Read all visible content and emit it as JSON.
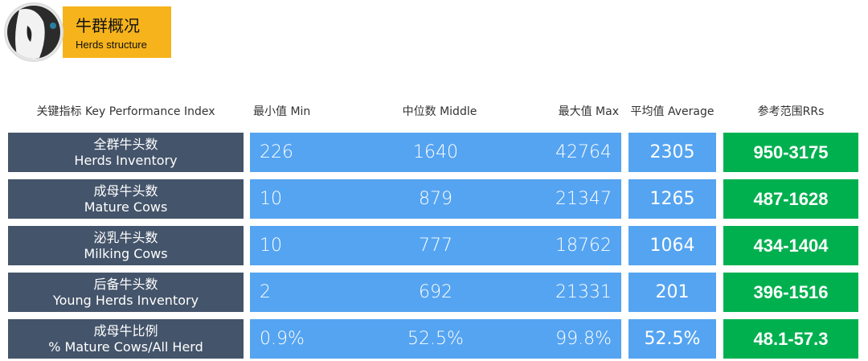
{
  "header": {
    "title": "牛群概况",
    "subtitle": "Herds structure"
  },
  "table": {
    "columns": [
      "关键指标 Key Performance Index",
      "最小值 Min",
      "中位数 Middle",
      "最大值 Max",
      "平均值 Average",
      "参考范围RRs"
    ],
    "rows": [
      {
        "label_cn": "全群牛头数",
        "label_en": "Herds Inventory",
        "min": "226",
        "middle": "1640",
        "max": "42764",
        "average": "2305",
        "rrs": "950-3175"
      },
      {
        "label_cn": "成母牛头数",
        "label_en": "Mature Cows",
        "min": "10",
        "middle": "879",
        "max": "21347",
        "average": "1265",
        "rrs": "487-1628"
      },
      {
        "label_cn": "泌乳牛头数",
        "label_en": "Milking Cows",
        "min": "10",
        "middle": "777",
        "max": "18762",
        "average": "1064",
        "rrs": "434-1404"
      },
      {
        "label_cn": "后备牛头数",
        "label_en": "Young Herds Inventory",
        "min": "2",
        "middle": "692",
        "max": "21331",
        "average": "201",
        "rrs": "396-1516"
      },
      {
        "label_cn": "成母牛比例",
        "label_en": "% Mature Cows/All Herd",
        "min": "0.9%",
        "middle": "52.5%",
        "max": "99.8%",
        "average": "52.5%",
        "rrs": "48.1-57.3"
      }
    ]
  }
}
